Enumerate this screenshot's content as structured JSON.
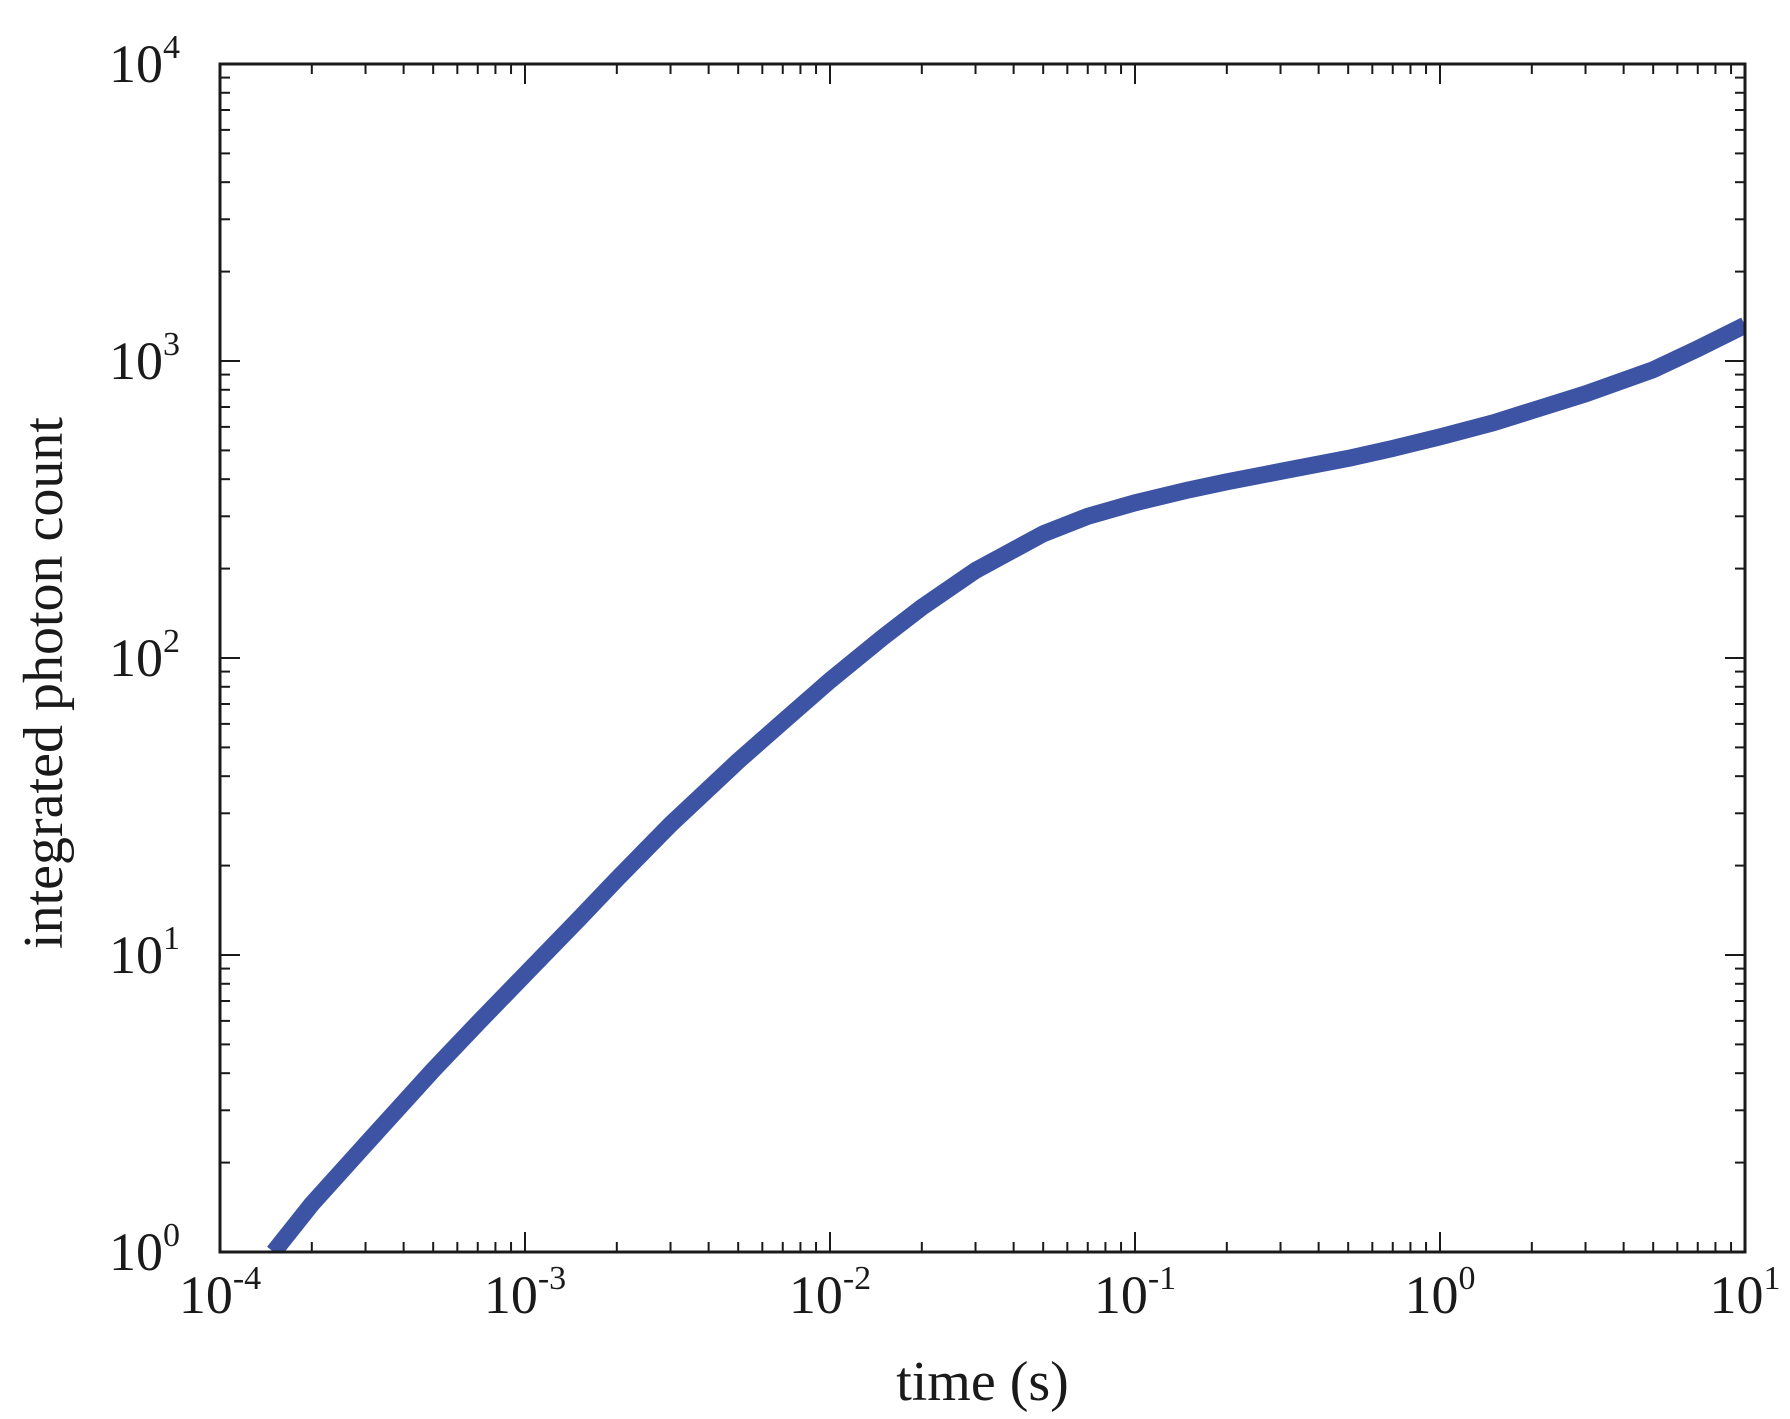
{
  "chart_data": {
    "type": "line",
    "title": "",
    "xlabel": "time (s)",
    "ylabel": "integrated photon count",
    "xscale": "log",
    "yscale": "log",
    "xlim": [
      0.0001,
      10
    ],
    "ylim": [
      1,
      10000
    ],
    "grid": false,
    "legend": "none",
    "x_ticks": [
      {
        "base": "10",
        "exp": "-4"
      },
      {
        "base": "10",
        "exp": "-3"
      },
      {
        "base": "10",
        "exp": "-2"
      },
      {
        "base": "10",
        "exp": "-1"
      },
      {
        "base": "10",
        "exp": "0"
      },
      {
        "base": "10",
        "exp": "1"
      }
    ],
    "y_ticks": [
      {
        "base": "10",
        "exp": "0"
      },
      {
        "base": "10",
        "exp": "1"
      },
      {
        "base": "10",
        "exp": "2"
      },
      {
        "base": "10",
        "exp": "3"
      },
      {
        "base": "10",
        "exp": "4"
      }
    ],
    "series": [
      {
        "color": "#3d54a4",
        "x": [
          0.00015,
          0.0002,
          0.0003,
          0.0005,
          0.0007,
          0.001,
          0.0015,
          0.002,
          0.003,
          0.005,
          0.007,
          0.01,
          0.015,
          0.02,
          0.03,
          0.05,
          0.07,
          0.1,
          0.15,
          0.2,
          0.3,
          0.5,
          0.7,
          1,
          1.5,
          2,
          3,
          5,
          7,
          10
        ],
        "y": [
          1.0,
          1.45,
          2.3,
          4.1,
          5.9,
          8.6,
          13.2,
          18,
          27.5,
          45,
          61,
          84,
          118,
          148,
          197,
          262,
          300,
          333,
          368,
          392,
          425,
          470,
          508,
          555,
          620,
          680,
          775,
          935,
          1100,
          1320
        ]
      }
    ]
  }
}
